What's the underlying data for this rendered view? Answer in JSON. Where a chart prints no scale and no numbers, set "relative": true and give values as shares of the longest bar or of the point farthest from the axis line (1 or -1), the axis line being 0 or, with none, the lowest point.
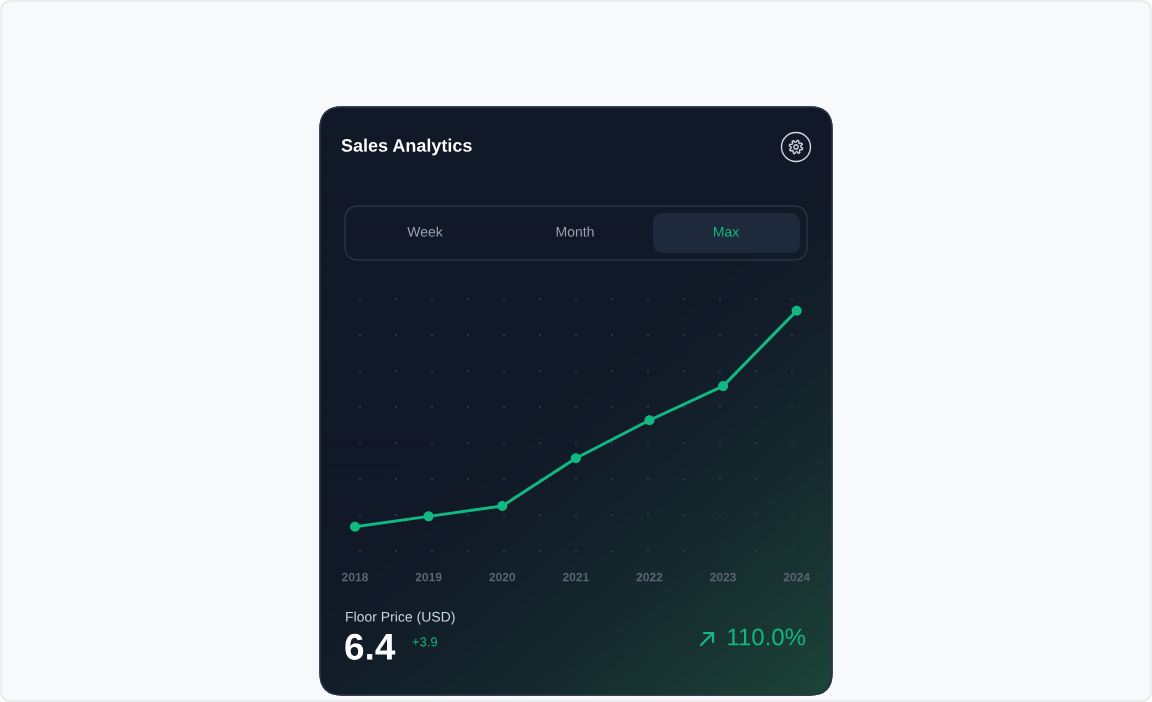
{
  "chart_data": {
    "type": "line",
    "title": "Sales Analytics",
    "relative": true,
    "categories": [
      "2018",
      "2019",
      "2020",
      "2021",
      "2022",
      "2023",
      "2024"
    ],
    "series": [
      {
        "color": "#10b981",
        "values": [
          0,
          0.048,
          0.096,
          0.317,
          0.493,
          0.651,
          1
        ]
      }
    ],
    "marker": "circle",
    "line_style": "solid",
    "annotations": [
      "Week",
      "Month",
      "Max",
      "Floor Price (USD)",
      "6.4",
      "+3.9",
      "110.0%"
    ]
  }
}
